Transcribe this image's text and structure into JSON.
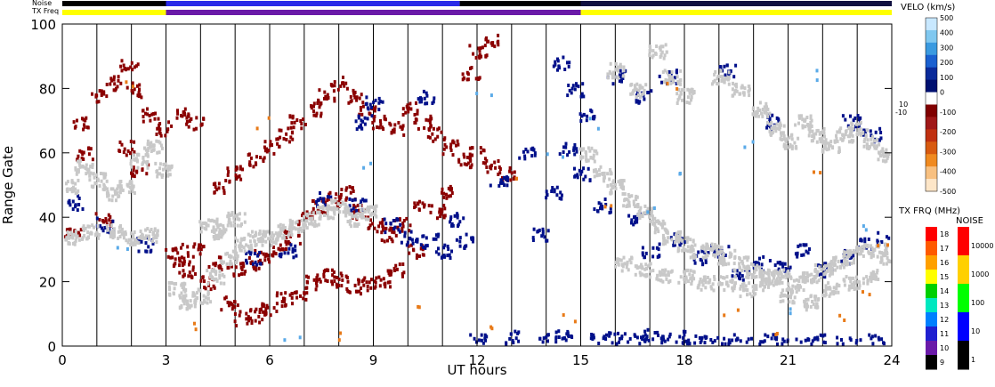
{
  "chart_data": {
    "type": "heatmap",
    "xlabel": "UT hours",
    "ylabel": "Range Gate",
    "xlim": [
      0,
      24
    ],
    "ylim": [
      0,
      100
    ],
    "x_ticks": [
      "0",
      "3",
      "6",
      "9",
      "12",
      "15",
      "18",
      "21",
      "24"
    ],
    "y_ticks": [
      "0",
      "20",
      "40",
      "60",
      "80",
      "100"
    ],
    "grid": "vertical lines every hour",
    "top_bars": {
      "noise_label": "Noise",
      "txfreq_label": "TX Freq",
      "txfreq_segments": [
        {
          "start": 0,
          "end": 3,
          "color": "#ffff00"
        },
        {
          "start": 3,
          "end": 15,
          "color": "#6a1aa8"
        },
        {
          "start": 15,
          "end": 24,
          "color": "#ffff00"
        }
      ],
      "noise_segments": [
        {
          "start": 0,
          "end": 3,
          "color": "#000000"
        },
        {
          "start": 3,
          "end": 11.5,
          "color": "#2a2ae8"
        },
        {
          "start": 11.5,
          "end": 15,
          "color": "#000000"
        },
        {
          "start": 15,
          "end": 24,
          "color": "#101040"
        }
      ]
    },
    "velocity_colorbar": {
      "title": "VELO (km/s)",
      "ticks_positive": [
        "500",
        "400",
        "300",
        "200",
        "100",
        "0"
      ],
      "ticks_negative": [
        "-100",
        "-200",
        "-300",
        "-400",
        "-500"
      ],
      "small_labels": [
        "10",
        "-10"
      ],
      "colors": [
        "#c8e8ff",
        "#80c8f0",
        "#3a9ae0",
        "#1a60d0",
        "#0a2a9a",
        "#001070",
        "#ffffff",
        "#800000",
        "#a01818",
        "#c03010",
        "#d85a10",
        "#f08a20",
        "#f8c080",
        "#fde6c8"
      ]
    },
    "txfreq_colorbar": {
      "title": "TX FRQ (MHz)",
      "ticks": [
        "18",
        "17",
        "16",
        "15",
        "14",
        "13",
        "12",
        "11",
        "10",
        "9"
      ],
      "colors": [
        "#ff0000",
        "#ff5a00",
        "#ffa000",
        "#ffff00",
        "#00d000",
        "#00e8c0",
        "#0080ff",
        "#2020d0",
        "#6a1aa8",
        "#000000"
      ]
    },
    "noise_colorbar": {
      "title": "NOISE",
      "ticks": [
        "10000",
        "1000",
        "100",
        "10",
        "1"
      ],
      "colors": [
        "#ff0000",
        "#ffd000",
        "#00ff00",
        "#0000ff",
        "#000000"
      ]
    },
    "series": [
      {
        "color": "#8b0000",
        "values": [
          [
            0.5,
            70
          ],
          [
            1.0,
            78
          ],
          [
            1.5,
            82
          ],
          [
            1.9,
            88
          ],
          [
            2.1,
            80
          ],
          [
            2.5,
            72
          ],
          [
            2.9,
            68
          ],
          [
            3.2,
            30
          ],
          [
            3.6,
            24
          ],
          [
            4.2,
            20
          ],
          [
            4.8,
            14
          ],
          [
            5.2,
            9
          ],
          [
            5.6,
            10
          ],
          [
            6.0,
            12
          ],
          [
            6.4,
            15
          ],
          [
            6.8,
            17
          ],
          [
            7.2,
            20
          ],
          [
            7.6,
            22
          ],
          [
            8.0,
            21
          ],
          [
            8.4,
            19
          ],
          [
            8.8,
            20
          ],
          [
            9.2,
            21
          ],
          [
            9.6,
            24
          ],
          [
            10.2,
            30
          ],
          [
            10.8,
            42
          ],
          [
            11.2,
            48
          ],
          [
            4.6,
            50
          ],
          [
            5.0,
            54
          ],
          [
            5.6,
            58
          ],
          [
            6.0,
            62
          ],
          [
            6.4,
            66
          ],
          [
            6.8,
            70
          ],
          [
            7.2,
            74
          ],
          [
            7.6,
            78
          ],
          [
            8.0,
            82
          ],
          [
            8.4,
            78
          ],
          [
            8.8,
            74
          ],
          [
            9.2,
            70
          ],
          [
            9.6,
            68
          ],
          [
            10.0,
            74
          ],
          [
            10.4,
            70
          ],
          [
            10.8,
            66
          ],
          [
            11.2,
            62
          ],
          [
            11.6,
            58
          ],
          [
            12.0,
            60
          ],
          [
            12.4,
            56
          ],
          [
            12.8,
            54
          ],
          [
            3.4,
            26
          ],
          [
            3.8,
            30
          ],
          [
            4.4,
            26
          ],
          [
            5.0,
            24
          ],
          [
            5.4,
            26
          ],
          [
            5.8,
            28
          ],
          [
            6.2,
            30
          ],
          [
            6.6,
            34
          ],
          [
            7.0,
            40
          ],
          [
            7.4,
            44
          ],
          [
            7.8,
            46
          ],
          [
            8.2,
            48
          ],
          [
            8.6,
            42
          ],
          [
            9.0,
            38
          ],
          [
            9.4,
            35
          ],
          [
            9.8,
            38
          ],
          [
            10.4,
            44
          ],
          [
            12.0,
            92
          ],
          [
            12.4,
            95
          ],
          [
            11.8,
            85
          ],
          [
            3.5,
            72
          ],
          [
            3.8,
            70
          ],
          [
            2.2,
            55
          ],
          [
            1.2,
            40
          ],
          [
            0.3,
            35
          ],
          [
            0.6,
            60
          ],
          [
            1.8,
            62
          ]
        ]
      },
      {
        "color": "#00108a",
        "values": [
          [
            0.4,
            45
          ],
          [
            1.2,
            38
          ],
          [
            2.4,
            32
          ],
          [
            5.5,
            28
          ],
          [
            6.5,
            30
          ],
          [
            7.5,
            46
          ],
          [
            8.5,
            44
          ],
          [
            9.5,
            38
          ],
          [
            10.0,
            34
          ],
          [
            10.6,
            33
          ],
          [
            11.0,
            30
          ],
          [
            11.4,
            40
          ],
          [
            11.6,
            33
          ],
          [
            12.6,
            52
          ],
          [
            13.4,
            60
          ],
          [
            13.8,
            35
          ],
          [
            14.2,
            48
          ],
          [
            14.6,
            62
          ],
          [
            15.0,
            54
          ],
          [
            15.6,
            44
          ],
          [
            16.0,
            84
          ],
          [
            16.6,
            40
          ],
          [
            17.0,
            30
          ],
          [
            17.5,
            84
          ],
          [
            17.8,
            34
          ],
          [
            18.4,
            28
          ],
          [
            19.0,
            30
          ],
          [
            19.6,
            22
          ],
          [
            20.2,
            26
          ],
          [
            20.8,
            26
          ],
          [
            21.4,
            30
          ],
          [
            22.0,
            24
          ],
          [
            22.6,
            28
          ],
          [
            23.2,
            32
          ],
          [
            23.8,
            34
          ],
          [
            15.5,
            2
          ],
          [
            16.0,
            3
          ],
          [
            16.5,
            2
          ],
          [
            17.0,
            4
          ],
          [
            17.5,
            2
          ],
          [
            18.0,
            3
          ],
          [
            18.5,
            2
          ],
          [
            19.0,
            1
          ],
          [
            19.5,
            2
          ],
          [
            20.0,
            1
          ],
          [
            20.5,
            2
          ],
          [
            21.0,
            1
          ],
          [
            21.5,
            1
          ],
          [
            22.0,
            2
          ],
          [
            22.5,
            1
          ],
          [
            23.0,
            1
          ],
          [
            23.5,
            2
          ],
          [
            12.0,
            2
          ],
          [
            13.0,
            3
          ],
          [
            14.0,
            2
          ],
          [
            14.5,
            4
          ],
          [
            10.5,
            78
          ],
          [
            9.0,
            76
          ],
          [
            8.7,
            70
          ],
          [
            14.8,
            80
          ],
          [
            14.4,
            88
          ],
          [
            15.2,
            72
          ],
          [
            16.8,
            78
          ],
          [
            19.2,
            86
          ],
          [
            20.6,
            70
          ],
          [
            22.8,
            70
          ],
          [
            23.4,
            66
          ]
        ]
      },
      {
        "color": "#c8c8c8",
        "values": [
          [
            0.2,
            50
          ],
          [
            0.6,
            56
          ],
          [
            1.0,
            52
          ],
          [
            1.4,
            48
          ],
          [
            1.8,
            50
          ],
          [
            2.2,
            58
          ],
          [
            2.6,
            62
          ],
          [
            2.9,
            55
          ],
          [
            0.3,
            34
          ],
          [
            0.8,
            36
          ],
          [
            1.5,
            36
          ],
          [
            2.0,
            34
          ],
          [
            2.5,
            35
          ],
          [
            3.3,
            18
          ],
          [
            3.6,
            14
          ],
          [
            4.0,
            16
          ],
          [
            4.4,
            22
          ],
          [
            4.8,
            28
          ],
          [
            5.2,
            32
          ],
          [
            5.6,
            34
          ],
          [
            6.0,
            34
          ],
          [
            6.4,
            36
          ],
          [
            6.8,
            38
          ],
          [
            7.2,
            40
          ],
          [
            7.6,
            42
          ],
          [
            8.0,
            44
          ],
          [
            8.4,
            40
          ],
          [
            8.8,
            42
          ],
          [
            4.2,
            38
          ],
          [
            4.6,
            36
          ],
          [
            5.0,
            40
          ],
          [
            15.2,
            60
          ],
          [
            15.6,
            54
          ],
          [
            16.0,
            50
          ],
          [
            16.4,
            46
          ],
          [
            16.8,
            42
          ],
          [
            17.2,
            38
          ],
          [
            17.6,
            34
          ],
          [
            18.0,
            32
          ],
          [
            18.4,
            30
          ],
          [
            18.8,
            30
          ],
          [
            19.2,
            28
          ],
          [
            19.6,
            26
          ],
          [
            20.0,
            24
          ],
          [
            20.4,
            22
          ],
          [
            20.8,
            22
          ],
          [
            21.2,
            20
          ],
          [
            21.6,
            22
          ],
          [
            22.0,
            24
          ],
          [
            22.4,
            26
          ],
          [
            22.8,
            28
          ],
          [
            23.2,
            30
          ],
          [
            23.6,
            30
          ],
          [
            23.9,
            28
          ],
          [
            16.2,
            26
          ],
          [
            16.8,
            24
          ],
          [
            17.4,
            22
          ],
          [
            18.0,
            22
          ],
          [
            18.6,
            20
          ],
          [
            19.2,
            20
          ],
          [
            19.8,
            18
          ],
          [
            20.4,
            20
          ],
          [
            21.0,
            16
          ],
          [
            21.6,
            14
          ],
          [
            22.2,
            18
          ],
          [
            22.8,
            20
          ],
          [
            23.4,
            22
          ],
          [
            19.0,
            84
          ],
          [
            19.6,
            80
          ],
          [
            20.2,
            74
          ],
          [
            20.6,
            68
          ],
          [
            21.0,
            64
          ],
          [
            21.4,
            70
          ],
          [
            21.8,
            66
          ],
          [
            22.2,
            62
          ],
          [
            22.6,
            66
          ],
          [
            23.0,
            68
          ],
          [
            23.4,
            64
          ],
          [
            23.8,
            60
          ],
          [
            16.0,
            86
          ],
          [
            16.6,
            80
          ],
          [
            17.2,
            92
          ],
          [
            17.6,
            84
          ],
          [
            18.0,
            78
          ]
        ]
      },
      {
        "color": "#e87a18",
        "values": [
          [
            1.9,
            82
          ],
          [
            4.0,
            6
          ],
          [
            5.8,
            70
          ],
          [
            8.2,
            4
          ],
          [
            10.3,
            12
          ],
          [
            12.4,
            6
          ],
          [
            13.2,
            54
          ],
          [
            14.6,
            8
          ],
          [
            15.8,
            46
          ],
          [
            17.6,
            80
          ],
          [
            19.3,
            12
          ],
          [
            20.6,
            4
          ],
          [
            21.8,
            54
          ],
          [
            22.4,
            10
          ],
          [
            23.1,
            18
          ],
          [
            23.6,
            30
          ]
        ]
      },
      {
        "color": "#5aaae8",
        "values": [
          [
            1.7,
            30
          ],
          [
            6.6,
            4
          ],
          [
            8.9,
            56
          ],
          [
            12.2,
            78
          ],
          [
            14.2,
            58
          ],
          [
            15.3,
            70
          ],
          [
            17.0,
            42
          ],
          [
            17.8,
            52
          ],
          [
            19.8,
            64
          ],
          [
            20.8,
            12
          ],
          [
            22.0,
            84
          ],
          [
            23.3,
            36
          ]
        ]
      }
    ]
  }
}
